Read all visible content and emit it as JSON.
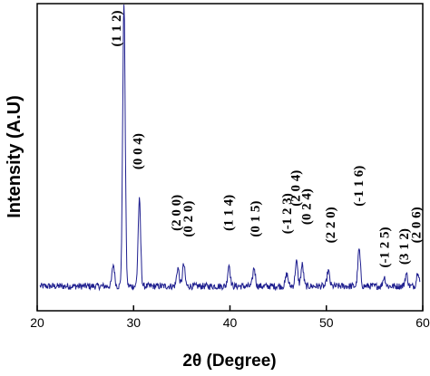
{
  "chart_data": {
    "type": "line",
    "xlabel": "2θ (Degree)",
    "ylabel": "Intensity (A.U)",
    "xlim": [
      20,
      60
    ],
    "ylim": [
      0,
      100
    ],
    "xticks": [
      20,
      30,
      40,
      50,
      60
    ],
    "grid": false,
    "line_color": "#1f1f8f",
    "series": [
      {
        "baseline": 8,
        "peaks": [
          {
            "x": 27.9,
            "height": 7
          },
          {
            "x": 29.0,
            "height": 92
          },
          {
            "x": 30.6,
            "height": 28
          },
          {
            "x": 34.6,
            "height": 6
          },
          {
            "x": 35.2,
            "height": 7
          },
          {
            "x": 39.9,
            "height": 7
          },
          {
            "x": 42.5,
            "height": 6
          },
          {
            "x": 45.9,
            "height": 4
          },
          {
            "x": 46.9,
            "height": 8
          },
          {
            "x": 47.5,
            "height": 7
          },
          {
            "x": 50.2,
            "height": 5
          },
          {
            "x": 53.4,
            "height": 12
          },
          {
            "x": 56.0,
            "height": 3
          },
          {
            "x": 58.3,
            "height": 4
          },
          {
            "x": 59.5,
            "height": 5
          }
        ]
      }
    ],
    "annotations": [
      {
        "text": "(1 1 2)",
        "x": 28.2,
        "y": 86
      },
      {
        "text": "(0 0 4)",
        "x": 30.4,
        "y": 46
      },
      {
        "text": "(2 0 0)",
        "x": 34.4,
        "y": 26
      },
      {
        "text": "(0 2 0)",
        "x": 35.6,
        "y": 24
      },
      {
        "text": "(1 1 4)",
        "x": 39.8,
        "y": 26
      },
      {
        "text": "(0 1 5)",
        "x": 42.6,
        "y": 24
      },
      {
        "text": "(-1 2 3)",
        "x": 45.9,
        "y": 25
      },
      {
        "text": "(2 0 4)",
        "x": 46.8,
        "y": 34
      },
      {
        "text": "(0 2 4)",
        "x": 47.9,
        "y": 28
      },
      {
        "text": "(2 2 0)",
        "x": 50.4,
        "y": 22
      },
      {
        "text": "(-1 1 6)",
        "x": 53.3,
        "y": 34
      },
      {
        "text": "(-1 2 5)",
        "x": 56.0,
        "y": 14
      },
      {
        "text": "(3 1 2)",
        "x": 58.0,
        "y": 15
      },
      {
        "text": "(2 0 6)",
        "x": 59.3,
        "y": 22
      }
    ]
  }
}
